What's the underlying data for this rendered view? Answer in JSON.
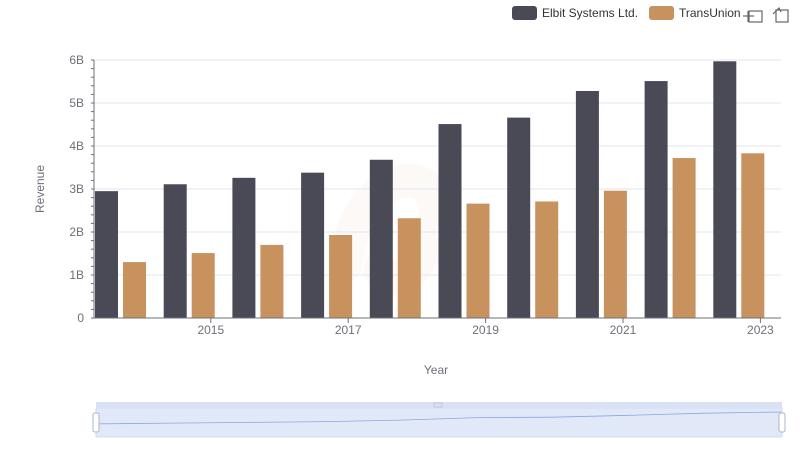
{
  "chart_data": {
    "type": "bar",
    "title": "",
    "xlabel": "Year",
    "ylabel": "Revenue",
    "categories": [
      "2014",
      "2015",
      "2016",
      "2017",
      "2018",
      "2019",
      "2020",
      "2021",
      "2022",
      "2023"
    ],
    "x_tick_labels": [
      "2015",
      "2017",
      "2019",
      "2021",
      "2023"
    ],
    "y_tick_labels": [
      "0",
      "1B",
      "2B",
      "3B",
      "4B",
      "5B",
      "6B"
    ],
    "ylim": [
      0,
      6000000000
    ],
    "grid": true,
    "legend_position": "top-right",
    "series": [
      {
        "name": "Elbit Systems Ltd.",
        "color": "#4a4a57",
        "values": [
          2950000000,
          3110000000,
          3260000000,
          3380000000,
          3680000000,
          4510000000,
          4660000000,
          5280000000,
          5510000000,
          5970000000
        ]
      },
      {
        "name": "TransUnion",
        "color": "#c8925e",
        "values": [
          1300000000,
          1510000000,
          1700000000,
          1930000000,
          2320000000,
          2660000000,
          2710000000,
          2960000000,
          3720000000,
          3830000000
        ]
      }
    ]
  },
  "colors": {
    "grid": "#e0e6f1",
    "axis": "#6e7079",
    "zoom_fill": "#d2dcf5",
    "zoom_border": "#aec1ee"
  },
  "icons": [
    "zoom-icon",
    "restore-icon",
    "watermark-logo"
  ]
}
